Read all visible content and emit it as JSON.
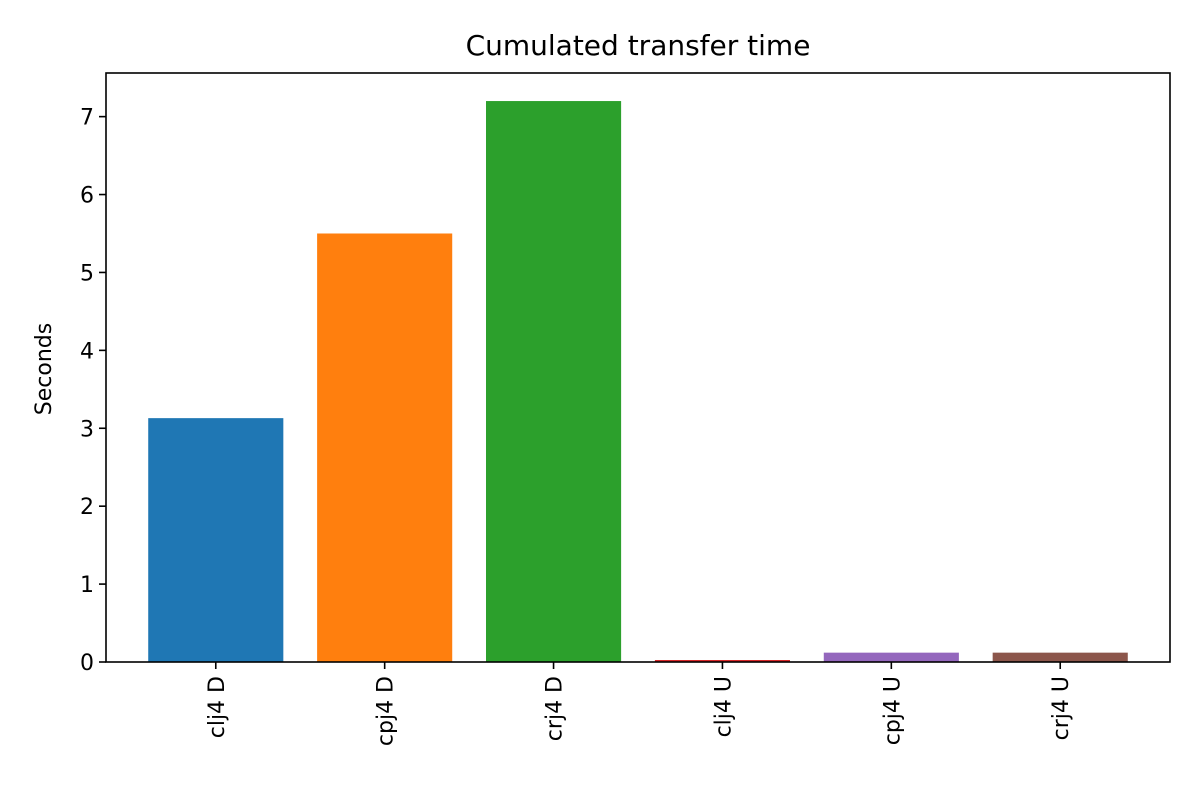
{
  "chart_data": {
    "type": "bar",
    "title": "Cumulated transfer time",
    "xlabel": "",
    "ylabel": "Seconds",
    "categories": [
      "clj4 D",
      "cpj4 D",
      "crj4 D",
      "clj4 U",
      "cpj4 U",
      "crj4 U"
    ],
    "values": [
      3.13,
      5.5,
      7.2,
      0.02,
      0.12,
      0.12
    ],
    "colors": [
      "#1f77b4",
      "#ff7f0e",
      "#2ca02c",
      "#d62728",
      "#9467bd",
      "#8c564b"
    ],
    "ylim": [
      0,
      7.56
    ],
    "yticks": [
      0,
      1,
      2,
      3,
      4,
      5,
      6,
      7
    ],
    "grid": false,
    "legend": "none"
  }
}
